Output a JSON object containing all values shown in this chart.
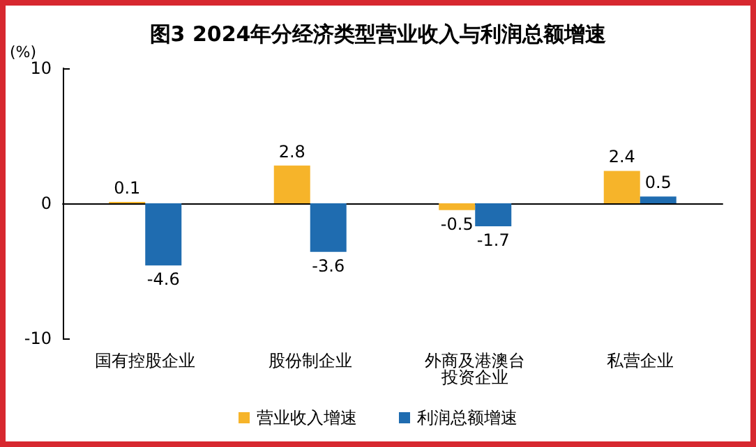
{
  "chart_data": {
    "type": "bar",
    "title": "图3 2024年分经济类型营业收入与利润总额增速",
    "ylabel": "(%)",
    "categories": [
      "国有控股企业",
      "股份制企业",
      "外商及港澳台投资企业",
      "私营企业"
    ],
    "series": [
      {
        "name": "营业收入增速",
        "color": "#f6b42a",
        "values": [
          0.1,
          2.8,
          -0.5,
          2.4
        ]
      },
      {
        "name": "利润总额增速",
        "color": "#1f6cb0",
        "values": [
          -4.6,
          -3.6,
          -1.7,
          0.5
        ]
      }
    ],
    "ylim": [
      -10,
      10
    ],
    "yticks": [
      -10,
      0,
      10
    ],
    "legend": "bottom",
    "data_labels": true
  }
}
